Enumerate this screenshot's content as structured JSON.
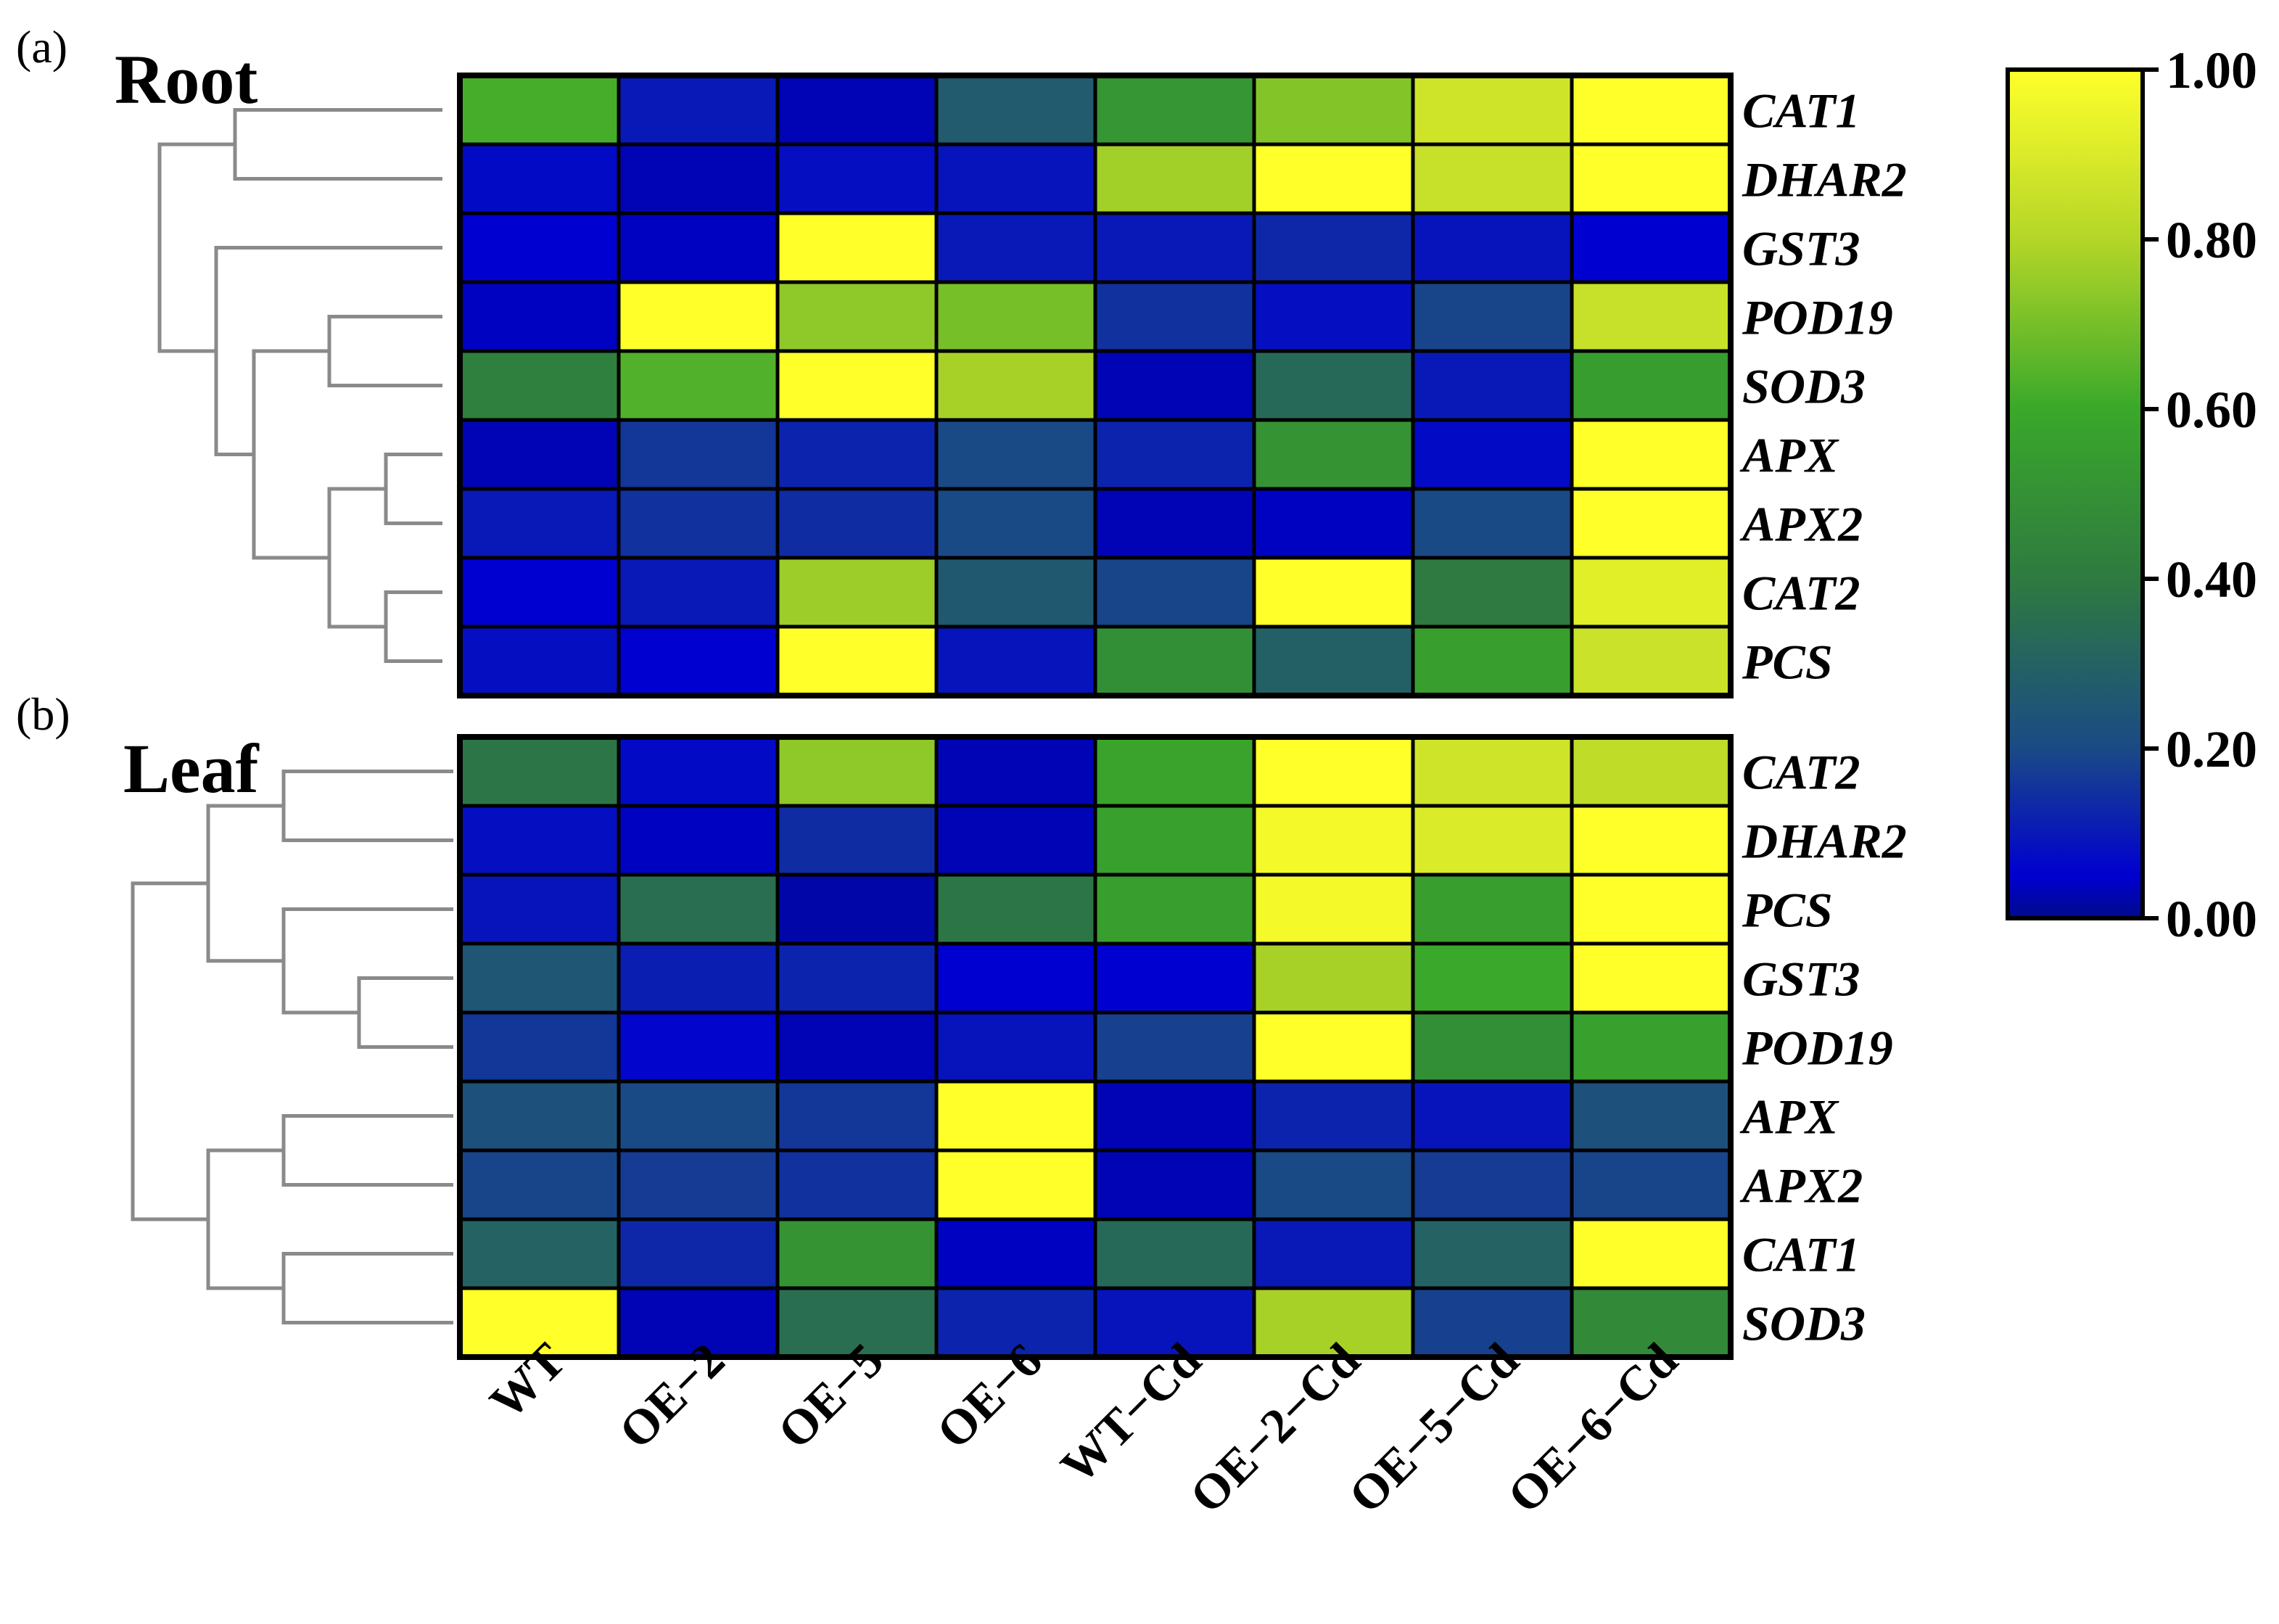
{
  "chart_data": {
    "type": "heatmap",
    "columns": [
      "WT",
      "OE−2",
      "OE−5",
      "OE−6",
      "WT−Cd",
      "OE−2−Cd",
      "OE−5−Cd",
      "OE−6−Cd"
    ],
    "colormap": {
      "low_color": "#000d80",
      "stops": [
        {
          "value": 0.0,
          "color": "#000a8c"
        },
        {
          "value": 0.05,
          "color": "#0000d0"
        },
        {
          "value": 0.2,
          "color": "#1a4a85"
        },
        {
          "value": 0.4,
          "color": "#2e7a40"
        },
        {
          "value": 0.6,
          "color": "#3aa82a"
        },
        {
          "value": 0.8,
          "color": "#b4d628"
        },
        {
          "value": 1.0,
          "color": "#ffff2a"
        }
      ]
    },
    "colorbar": {
      "range": [
        0,
        1
      ],
      "ticks": [
        0.0,
        0.2,
        0.4,
        0.6,
        0.8,
        1.0
      ],
      "tick_labels": [
        "0.00",
        "0.20",
        "0.40",
        "0.60",
        "0.80",
        "1.00"
      ]
    },
    "panels": [
      {
        "tag": "(a)",
        "title": "Root",
        "rows": [
          "CAT1",
          "DHAR2",
          "GST3",
          "POD19",
          "SOD3",
          "APX",
          "APX2",
          "CAT2",
          "PCS"
        ],
        "values": [
          [
            0.62,
            0.1,
            0.03,
            0.27,
            0.52,
            0.72,
            0.87,
            1.0
          ],
          [
            0.07,
            0.03,
            0.08,
            0.09,
            0.77,
            1.0,
            0.85,
            1.0
          ],
          [
            0.05,
            0.04,
            1.0,
            0.1,
            0.1,
            0.13,
            0.09,
            0.05
          ],
          [
            0.04,
            1.0,
            0.74,
            0.7,
            0.15,
            0.08,
            0.19,
            0.85
          ],
          [
            0.42,
            0.64,
            1.0,
            0.78,
            0.03,
            0.33,
            0.1,
            0.55
          ],
          [
            0.03,
            0.16,
            0.12,
            0.2,
            0.12,
            0.51,
            0.07,
            1.0
          ],
          [
            0.1,
            0.15,
            0.14,
            0.2,
            0.03,
            0.04,
            0.2,
            1.0
          ],
          [
            0.05,
            0.1,
            0.76,
            0.26,
            0.19,
            1.0,
            0.4,
            0.92
          ],
          [
            0.08,
            0.05,
            1.0,
            0.09,
            0.49,
            0.29,
            0.56,
            0.86
          ]
        ],
        "dendrogram": {
          "merges": [
            {
              "a": 5,
              "b": 6,
              "h": 0.15
            },
            {
              "a": 7,
              "b": 8,
              "h": 0.15
            },
            {
              "a": 3,
              "b": 4,
              "h": 0.3
            },
            {
              "a": 9,
              "b": 10,
              "h": 0.3
            },
            {
              "a": 11,
              "b": 12,
              "h": 0.5
            },
            {
              "a": 2,
              "b": 13,
              "h": 0.6
            },
            {
              "a": 0,
              "b": 1,
              "h": 0.55
            },
            {
              "a": 15,
              "b": 14,
              "h": 0.75
            }
          ]
        }
      },
      {
        "tag": "(b)",
        "title": "Leaf",
        "rows": [
          "CAT2",
          "DHAR2",
          "PCS",
          "GST3",
          "POD19",
          "APX",
          "APX2",
          "CAT1",
          "SOD3"
        ],
        "values": [
          [
            0.38,
            0.07,
            0.74,
            0.03,
            0.58,
            1.0,
            0.87,
            0.83
          ],
          [
            0.08,
            0.04,
            0.14,
            0.03,
            0.57,
            0.97,
            0.9,
            1.0
          ],
          [
            0.09,
            0.35,
            0.02,
            0.38,
            0.56,
            0.97,
            0.56,
            1.0
          ],
          [
            0.25,
            0.11,
            0.12,
            0.05,
            0.05,
            0.78,
            0.6,
            1.0
          ],
          [
            0.16,
            0.06,
            0.03,
            0.09,
            0.18,
            1.0,
            0.49,
            0.57
          ],
          [
            0.23,
            0.2,
            0.16,
            1.0,
            0.03,
            0.12,
            0.09,
            0.23
          ],
          [
            0.19,
            0.17,
            0.15,
            1.0,
            0.03,
            0.2,
            0.17,
            0.19
          ],
          [
            0.3,
            0.13,
            0.51,
            0.04,
            0.33,
            0.1,
            0.3,
            1.0
          ],
          [
            1.0,
            0.03,
            0.35,
            0.12,
            0.09,
            0.78,
            0.18,
            0.47
          ]
        ],
        "dendrogram": {
          "merges": [
            {
              "a": 0,
              "b": 1,
              "h": 0.45
            },
            {
              "a": 3,
              "b": 4,
              "h": 0.25
            },
            {
              "a": 2,
              "b": 10,
              "h": 0.45
            },
            {
              "a": 9,
              "b": 11,
              "h": 0.65
            },
            {
              "a": 5,
              "b": 6,
              "h": 0.45
            },
            {
              "a": 7,
              "b": 8,
              "h": 0.45
            },
            {
              "a": 13,
              "b": 14,
              "h": 0.65
            },
            {
              "a": 12,
              "b": 15,
              "h": 0.85
            }
          ]
        }
      }
    ]
  }
}
